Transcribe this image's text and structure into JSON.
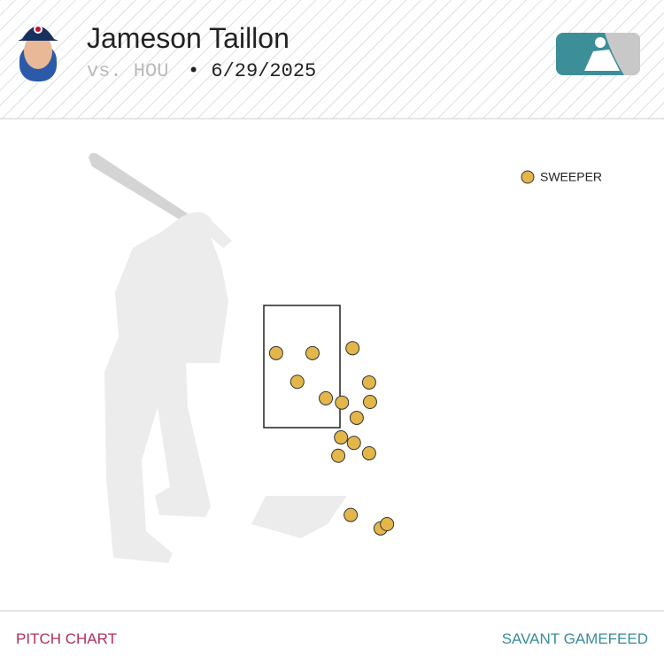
{
  "chart_data": {
    "type": "scatter",
    "title": "Jameson Taillon",
    "opponent": "vs. HOU",
    "date": "• 6/29/2025",
    "footer_left": "PITCH CHART",
    "footer_right": "SAVANT GAMEFEED",
    "xlim": [
      -3,
      3
    ],
    "ylim": [
      -0.5,
      5
    ],
    "series": [
      {
        "name": "SWEEPER",
        "color": "#e3b64a",
        "x": [
          -0.56,
          0.23,
          1.1,
          -0.1,
          1.46,
          0.52,
          0.87,
          1.48,
          1.19,
          0.85,
          1.13,
          0.79,
          1.46,
          1.06,
          1.71,
          1.85
        ],
        "values": [
          2.72,
          2.72,
          2.8,
          2.25,
          2.24,
          1.98,
          1.91,
          1.92,
          1.66,
          1.34,
          1.25,
          1.04,
          1.08,
          0.07,
          -0.15,
          -0.08
        ]
      }
    ]
  }
}
